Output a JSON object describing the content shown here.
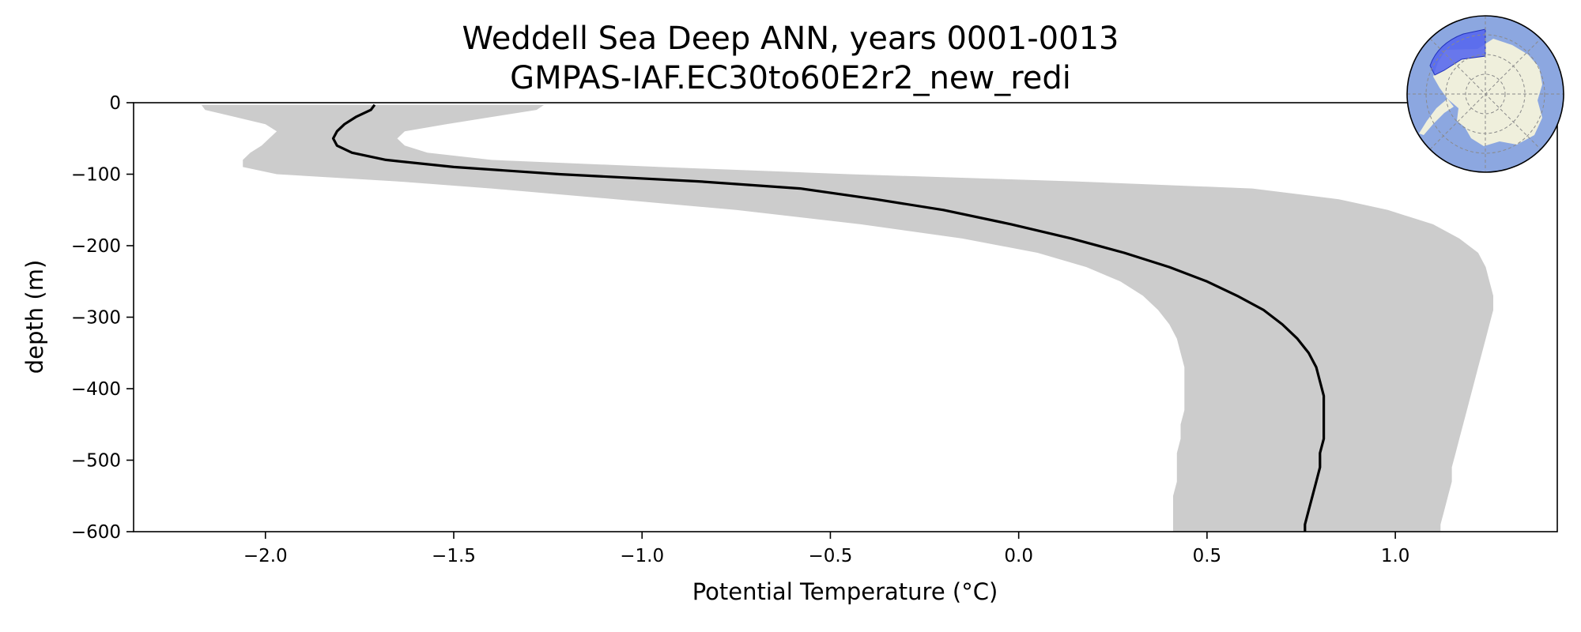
{
  "chart_data": {
    "type": "line",
    "title": "Weddell Sea Deep ANN, years 0001-0013",
    "subtitle": "GMPAS-IAF.EC30to60E2r2_new_redi",
    "xlabel": "Potential Temperature (°C)",
    "ylabel": "depth (m)",
    "xlim": [
      -2.35,
      1.43
    ],
    "ylim": [
      -600,
      0
    ],
    "grid": false,
    "x_ticks": [
      -2.0,
      -1.5,
      -1.0,
      -0.5,
      0.0,
      0.5,
      1.0
    ],
    "x_tick_labels": [
      "−2.0",
      "−1.5",
      "−1.0",
      "−0.5",
      "0.0",
      "0.5",
      "1.0"
    ],
    "y_ticks": [
      0,
      -100,
      -200,
      -300,
      -400,
      -500,
      -600
    ],
    "y_tick_labels": [
      "0",
      "−100",
      "−200",
      "−300",
      "−400",
      "−500",
      "−600"
    ],
    "series": [
      {
        "style": "mean-line",
        "color": "#000000",
        "depth": [
          -3,
          -10,
          -20,
          -30,
          -40,
          -50,
          -60,
          -70,
          -80,
          -90,
          -100,
          -110,
          -120,
          -135,
          -150,
          -170,
          -190,
          -210,
          -230,
          -250,
          -270,
          -290,
          -310,
          -330,
          -350,
          -370,
          -390,
          -410,
          -430,
          -450,
          -470,
          -490,
          -510,
          -530,
          -550,
          -570,
          -590,
          -600
        ],
        "temperature": [
          -1.71,
          -1.72,
          -1.76,
          -1.79,
          -1.81,
          -1.82,
          -1.81,
          -1.77,
          -1.68,
          -1.5,
          -1.22,
          -0.85,
          -0.58,
          -0.38,
          -0.2,
          -0.02,
          0.14,
          0.28,
          0.4,
          0.5,
          0.58,
          0.65,
          0.7,
          0.74,
          0.77,
          0.79,
          0.8,
          0.81,
          0.81,
          0.81,
          0.81,
          0.8,
          0.8,
          0.79,
          0.78,
          0.77,
          0.76,
          0.76
        ]
      },
      {
        "style": "shaded-band",
        "color": "#cccccc",
        "depth": [
          -3,
          -10,
          -20,
          -30,
          -40,
          -50,
          -60,
          -70,
          -80,
          -90,
          -100,
          -110,
          -120,
          -135,
          -150,
          -170,
          -190,
          -210,
          -230,
          -250,
          -270,
          -290,
          -310,
          -330,
          -350,
          -370,
          -390,
          -410,
          -430,
          -450,
          -470,
          -490,
          -510,
          -530,
          -550,
          -570,
          -590,
          -600
        ],
        "lower": [
          -2.17,
          -2.16,
          -2.08,
          -2.0,
          -1.97,
          -1.99,
          -2.01,
          -2.04,
          -2.06,
          -2.06,
          -1.97,
          -1.65,
          -1.4,
          -1.07,
          -0.75,
          -0.42,
          -0.15,
          0.05,
          0.18,
          0.27,
          0.33,
          0.37,
          0.4,
          0.42,
          0.43,
          0.44,
          0.44,
          0.44,
          0.44,
          0.43,
          0.43,
          0.42,
          0.42,
          0.42,
          0.41,
          0.41,
          0.41,
          0.41
        ],
        "upper": [
          -1.26,
          -1.28,
          -1.4,
          -1.52,
          -1.63,
          -1.65,
          -1.63,
          -1.57,
          -1.4,
          -0.95,
          -0.45,
          0.15,
          0.62,
          0.85,
          0.98,
          1.1,
          1.17,
          1.22,
          1.24,
          1.25,
          1.26,
          1.26,
          1.25,
          1.24,
          1.23,
          1.22,
          1.21,
          1.2,
          1.19,
          1.18,
          1.17,
          1.16,
          1.15,
          1.15,
          1.14,
          1.13,
          1.12,
          1.12
        ]
      }
    ]
  },
  "inset_map": {
    "ocean_color": "#8ca7e0",
    "land_color": "#efefdc",
    "region_color": "#5566ee"
  }
}
